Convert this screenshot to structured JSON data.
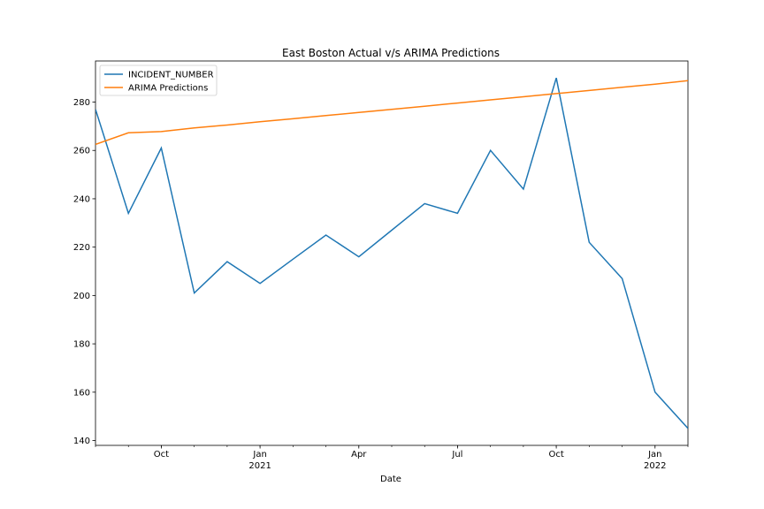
{
  "chart_data": {
    "type": "line",
    "title": "East Boston Actual v/s ARIMA Predictions",
    "xlabel": "Date",
    "ylabel": "",
    "x": [
      "2020-08",
      "2020-09",
      "2020-10",
      "2020-11",
      "2020-12",
      "2021-01",
      "2021-02",
      "2021-03",
      "2021-04",
      "2021-05",
      "2021-06",
      "2021-07",
      "2021-08",
      "2021-09",
      "2021-10",
      "2021-11",
      "2021-12",
      "2022-01",
      "2022-02"
    ],
    "series": [
      {
        "name": "INCIDENT_NUMBER",
        "color": "#1f77b4",
        "values": [
          277,
          234,
          261,
          201,
          214,
          205,
          215,
          225,
          216,
          227,
          238,
          234,
          260,
          244,
          290,
          222,
          207,
          160,
          145
        ]
      },
      {
        "name": "ARIMA Predictions",
        "color": "#ff7f0e",
        "values": [
          262.5,
          267.3,
          267.8,
          269.3,
          270.5,
          271.9,
          273.1,
          274.4,
          275.7,
          277.0,
          278.3,
          279.6,
          280.9,
          282.2,
          283.5,
          284.8,
          286.1,
          287.4,
          288.9
        ]
      }
    ],
    "ylim": [
      138,
      297
    ],
    "yticks": [
      140,
      160,
      180,
      200,
      220,
      240,
      260,
      280
    ],
    "xticks": [
      {
        "month": "Oct",
        "year": ""
      },
      {
        "month": "Jan",
        "year": "2021"
      },
      {
        "month": "Apr",
        "year": ""
      },
      {
        "month": "Jul",
        "year": ""
      },
      {
        "month": "Oct",
        "year": ""
      },
      {
        "month": "Jan",
        "year": "2022"
      }
    ],
    "legend_position": "top-left",
    "grid": false
  }
}
